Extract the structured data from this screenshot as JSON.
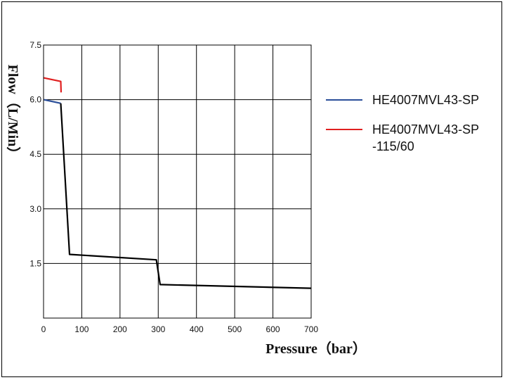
{
  "chart_data": {
    "type": "line",
    "xlabel": "Pressure（bar）",
    "ylabel": "Flow（L/Min）",
    "xlim": [
      0,
      700
    ],
    "ylim": [
      0,
      7.5
    ],
    "x_ticks": [
      0,
      100,
      200,
      300,
      400,
      500,
      600,
      700
    ],
    "y_ticks": [
      1.5,
      3.0,
      4.5,
      6.0,
      7.5
    ],
    "y_tick_labels": [
      "1.5",
      "3.0",
      "4.5",
      "6.0",
      "7.5"
    ],
    "grid": true,
    "legend_position": "right",
    "series": [
      {
        "name": "HE4007MVL43-SP",
        "color": "#2b4f9a",
        "points": [
          [
            0,
            6.0
          ],
          [
            45,
            5.9
          ]
        ]
      },
      {
        "name": "HE4007MVL43-SP\n-115/60",
        "legend_lines": [
          "HE4007MVL43-SP",
          "-115/60"
        ],
        "color": "#e02020",
        "points": [
          [
            0,
            6.6
          ],
          [
            45,
            6.5
          ],
          [
            46,
            6.2
          ]
        ]
      },
      {
        "name": "",
        "color": "#000000",
        "points": [
          [
            45,
            5.9
          ],
          [
            68,
            1.75
          ],
          [
            295,
            1.6
          ],
          [
            305,
            0.92
          ],
          [
            700,
            0.82
          ]
        ]
      }
    ]
  }
}
